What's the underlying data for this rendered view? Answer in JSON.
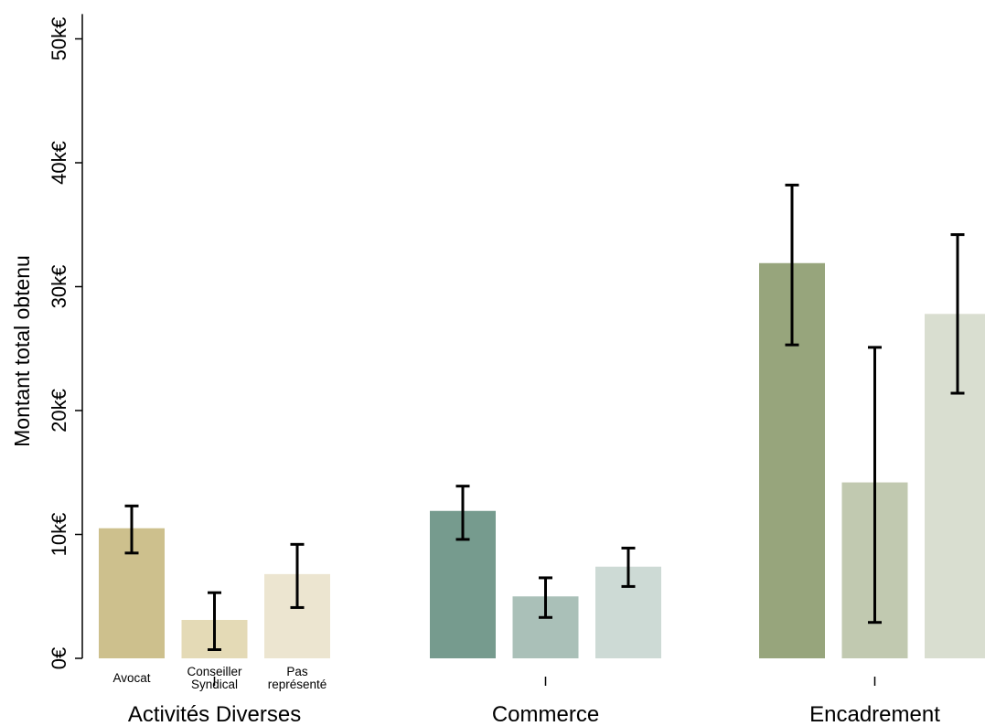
{
  "chart_data": {
    "type": "bar",
    "ylabel": "Montant total obtenu",
    "ylim": [
      0,
      52000
    ],
    "yticks": [
      {
        "value": 0,
        "label": "0€"
      },
      {
        "value": 10000,
        "label": "10k€"
      },
      {
        "value": 20000,
        "label": "20k€"
      },
      {
        "value": 30000,
        "label": "30k€"
      },
      {
        "value": 40000,
        "label": "40k€"
      },
      {
        "value": 50000,
        "label": "50k€"
      }
    ],
    "grid": false,
    "legend": "none",
    "groups": [
      {
        "label": "Activités Diverses",
        "bars": [
          {
            "label": "Avocat",
            "value": 10500,
            "err_low": 8500,
            "err_high": 12300,
            "color": "#cdc08d"
          },
          {
            "label": "Conseiller Syndical",
            "value": 3100,
            "err_low": 700,
            "err_high": 5300,
            "color": "#e4dab6"
          },
          {
            "label": "Pas représenté",
            "value": 6800,
            "err_low": 4100,
            "err_high": 9200,
            "color": "#ece5d0"
          }
        ]
      },
      {
        "label": "Commerce",
        "bars": [
          {
            "label": "",
            "value": 11900,
            "err_low": 9600,
            "err_high": 13900,
            "color": "#769b8e"
          },
          {
            "label": "",
            "value": 5000,
            "err_low": 3300,
            "err_high": 6500,
            "color": "#aac0b8"
          },
          {
            "label": "",
            "value": 7400,
            "err_low": 5800,
            "err_high": 8900,
            "color": "#cddad5"
          }
        ]
      },
      {
        "label": "Encadrement",
        "bars": [
          {
            "label": "",
            "value": 31900,
            "err_low": 25300,
            "err_high": 38200,
            "color": "#97a57c"
          },
          {
            "label": "",
            "value": 14200,
            "err_low": 2900,
            "err_high": 25100,
            "color": "#c1c9b0"
          },
          {
            "label": "",
            "value": 27800,
            "err_low": 21400,
            "err_high": 34200,
            "color": "#d9ded0"
          }
        ]
      }
    ]
  }
}
